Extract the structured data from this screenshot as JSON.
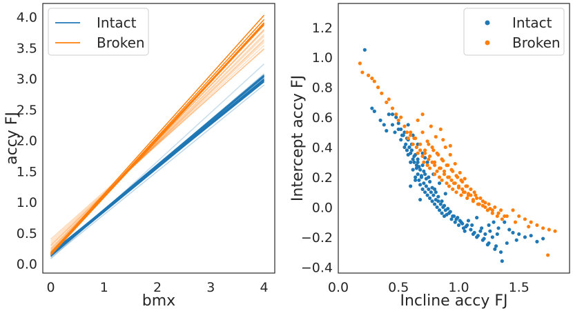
{
  "chart_data": [
    {
      "type": "line",
      "title": "",
      "xlabel": "bmx",
      "ylabel": "accy FJ",
      "xlim": [
        -0.15,
        4.2
      ],
      "ylim": [
        -0.15,
        4.22
      ],
      "xticks": [
        0,
        1,
        2,
        3,
        4
      ],
      "yticks": [
        0.0,
        0.5,
        1.0,
        1.5,
        2.0,
        2.5,
        3.0,
        3.5,
        4.0
      ],
      "xtick_labels": [
        "0",
        "1",
        "2",
        "3",
        "4"
      ],
      "ytick_labels": [
        "0.0",
        "0.5",
        "1.0",
        "1.5",
        "2.0",
        "2.5",
        "3.0",
        "3.5",
        "4.0"
      ],
      "grid": false,
      "legend": {
        "position": "top-left",
        "entries": [
          "Intact",
          "Broken"
        ]
      },
      "series": [
        {
          "name": "Intact",
          "color": "#1f77b4",
          "lines": [
            {
              "intercept": 0.15,
              "slope": 0.705,
              "alpha": 1.0
            },
            {
              "intercept": 0.14,
              "slope": 0.715,
              "alpha": 1.0
            },
            {
              "intercept": 0.16,
              "slope": 0.725,
              "alpha": 1.0
            },
            {
              "intercept": 0.13,
              "slope": 0.71,
              "alpha": 1.0
            },
            {
              "intercept": 0.17,
              "slope": 0.695,
              "alpha": 1.0
            },
            {
              "intercept": 0.15,
              "slope": 0.72,
              "alpha": 1.0
            },
            {
              "intercept": 0.12,
              "slope": 0.73,
              "alpha": 1.0
            },
            {
              "intercept": 0.18,
              "slope": 0.7,
              "alpha": 1.0
            },
            {
              "intercept": 0.16,
              "slope": 0.71,
              "alpha": 1.0
            },
            {
              "intercept": 0.14,
              "slope": 0.725,
              "alpha": 1.0
            },
            {
              "intercept": 0.08,
              "slope": 0.79,
              "alpha": 0.25
            },
            {
              "intercept": 0.1,
              "slope": 0.7,
              "alpha": 0.3
            },
            {
              "intercept": 0.12,
              "slope": 0.74,
              "alpha": 0.35
            }
          ]
        },
        {
          "name": "Broken",
          "color": "#ff7f0e",
          "lines": [
            {
              "intercept": 0.17,
              "slope": 0.965,
              "alpha": 1.0
            },
            {
              "intercept": 0.15,
              "slope": 0.94,
              "alpha": 1.0
            },
            {
              "intercept": 0.18,
              "slope": 0.93,
              "alpha": 1.0
            },
            {
              "intercept": 0.16,
              "slope": 0.95,
              "alpha": 1.0
            },
            {
              "intercept": 0.14,
              "slope": 0.935,
              "alpha": 1.0
            },
            {
              "intercept": 0.19,
              "slope": 0.92,
              "alpha": 0.6
            },
            {
              "intercept": 0.22,
              "slope": 0.89,
              "alpha": 0.35
            },
            {
              "intercept": 0.25,
              "slope": 0.86,
              "alpha": 0.3
            },
            {
              "intercept": 0.28,
              "slope": 0.84,
              "alpha": 0.25
            },
            {
              "intercept": 0.31,
              "slope": 0.82,
              "alpha": 0.25
            },
            {
              "intercept": 0.34,
              "slope": 0.8,
              "alpha": 0.25
            },
            {
              "intercept": 0.37,
              "slope": 0.78,
              "alpha": 0.25
            },
            {
              "intercept": 0.4,
              "slope": 0.77,
              "alpha": 0.3
            },
            {
              "intercept": 0.24,
              "slope": 0.87,
              "alpha": 0.3
            },
            {
              "intercept": 0.2,
              "slope": 0.9,
              "alpha": 0.4
            },
            {
              "intercept": 0.3,
              "slope": 0.83,
              "alpha": 0.3
            }
          ]
        }
      ]
    },
    {
      "type": "scatter",
      "title": "",
      "xlabel": "Incline accy FJ",
      "ylabel": "Intercept accy FJ",
      "xlim": [
        0.0,
        1.92
      ],
      "ylim": [
        -0.44,
        1.36
      ],
      "xticks": [
        0.0,
        0.5,
        1.0,
        1.5
      ],
      "yticks": [
        -0.4,
        -0.2,
        0.0,
        0.2,
        0.4,
        0.6,
        0.8,
        1.0,
        1.2
      ],
      "xtick_labels": [
        "0.0",
        "0.5",
        "1.0",
        "1.5"
      ],
      "ytick_labels": [
        "−0.4",
        "−0.2",
        "0.0",
        "0.2",
        "0.4",
        "0.6",
        "0.8",
        "1.0",
        "1.2"
      ],
      "grid": false,
      "legend": {
        "position": "top-right",
        "entries": [
          "Intact",
          "Broken"
        ]
      },
      "series": [
        {
          "name": "Intact",
          "color": "#1f77b4",
          "x": [
            0.22,
            0.28,
            0.3,
            0.35,
            0.38,
            0.4,
            0.42,
            0.45,
            0.47,
            0.48,
            0.5,
            0.52,
            0.53,
            0.55,
            0.55,
            0.56,
            0.57,
            0.58,
            0.58,
            0.59,
            0.6,
            0.6,
            0.61,
            0.62,
            0.62,
            0.63,
            0.64,
            0.64,
            0.65,
            0.66,
            0.66,
            0.67,
            0.68,
            0.68,
            0.69,
            0.7,
            0.7,
            0.71,
            0.72,
            0.72,
            0.73,
            0.74,
            0.75,
            0.75,
            0.76,
            0.77,
            0.78,
            0.79,
            0.8,
            0.8,
            0.81,
            0.82,
            0.83,
            0.84,
            0.85,
            0.86,
            0.87,
            0.88,
            0.89,
            0.9,
            0.92,
            0.94,
            0.95,
            0.97,
            0.98,
            1.0,
            1.02,
            1.04,
            1.05,
            1.07,
            1.1,
            1.12,
            1.15,
            1.18,
            1.2,
            1.22,
            1.25,
            1.28,
            1.3,
            1.33,
            1.35,
            1.4,
            1.45,
            1.5,
            1.55,
            1.6,
            1.65,
            1.7,
            0.52,
            0.57,
            0.61,
            0.66,
            0.71,
            0.76,
            0.81,
            0.86,
            0.91,
            0.96,
            1.01,
            1.06,
            1.11,
            1.16,
            1.21,
            1.26,
            1.31,
            0.45,
            0.5,
            0.54,
            0.59,
            0.63,
            0.67,
            0.73,
            0.78,
            0.83,
            0.88,
            0.93,
            0.99,
            1.03,
            1.08,
            1.13,
            1.19,
            1.24,
            1.29,
            1.36,
            1.42,
            1.48,
            0.58,
            0.62,
            0.66,
            0.7,
            0.74,
            0.79,
            0.84,
            0.89,
            0.65,
            0.69,
            0.72,
            0.6,
            0.64,
            0.68,
            1.15,
            1.25,
            1.32,
            1.38
          ],
          "y": [
            1.05,
            0.66,
            0.64,
            0.58,
            0.55,
            0.51,
            0.62,
            0.55,
            0.5,
            0.6,
            0.52,
            0.45,
            0.48,
            0.4,
            0.5,
            0.42,
            0.38,
            0.45,
            0.35,
            0.4,
            0.36,
            0.3,
            0.42,
            0.32,
            0.25,
            0.3,
            0.35,
            0.2,
            0.28,
            0.22,
            0.32,
            0.18,
            0.25,
            0.15,
            0.2,
            0.12,
            0.28,
            0.16,
            0.1,
            0.22,
            0.14,
            0.08,
            0.12,
            0.2,
            0.06,
            0.1,
            0.04,
            0.08,
            0.02,
            0.12,
            0.05,
            0.0,
            0.04,
            -0.02,
            0.02,
            -0.04,
            0.0,
            -0.06,
            -0.02,
            -0.05,
            -0.04,
            -0.08,
            -0.06,
            -0.1,
            -0.08,
            -0.12,
            -0.1,
            -0.14,
            -0.16,
            -0.12,
            -0.15,
            -0.18,
            -0.2,
            -0.16,
            -0.22,
            -0.18,
            -0.24,
            -0.2,
            -0.28,
            -0.14,
            -0.3,
            -0.24,
            -0.17,
            -0.18,
            -0.2,
            -0.19,
            -0.23,
            -0.21,
            0.52,
            0.46,
            0.38,
            0.3,
            0.24,
            0.17,
            0.1,
            0.04,
            -0.01,
            -0.06,
            -0.09,
            -0.13,
            -0.12,
            -0.19,
            -0.21,
            -0.16,
            -0.26,
            0.62,
            0.56,
            0.48,
            0.4,
            0.34,
            0.27,
            0.19,
            0.13,
            0.07,
            0.01,
            -0.03,
            -0.07,
            -0.11,
            -0.09,
            -0.17,
            -0.14,
            -0.25,
            -0.1,
            -0.36,
            -0.15,
            -0.22,
            0.55,
            0.48,
            0.42,
            0.36,
            0.3,
            0.22,
            0.16,
            0.09,
            0.26,
            0.21,
            0.33,
            0.14,
            0.18,
            0.05,
            -0.07,
            -0.12,
            -0.18,
            -0.1
          ]
        },
        {
          "name": "Broken",
          "color": "#ff7f0e",
          "x": [
            0.18,
            0.2,
            0.25,
            0.28,
            0.3,
            0.33,
            0.36,
            0.4,
            0.42,
            0.45,
            0.48,
            0.5,
            0.52,
            0.55,
            0.57,
            0.58,
            0.6,
            0.62,
            0.63,
            0.65,
            0.66,
            0.68,
            0.7,
            0.71,
            0.72,
            0.74,
            0.75,
            0.76,
            0.78,
            0.8,
            0.8,
            0.82,
            0.84,
            0.85,
            0.86,
            0.88,
            0.9,
            0.91,
            0.92,
            0.94,
            0.95,
            0.97,
            0.98,
            1.0,
            1.02,
            1.03,
            1.05,
            1.07,
            1.08,
            1.1,
            1.12,
            1.15,
            1.17,
            1.2,
            1.22,
            1.25,
            1.28,
            1.3,
            1.33,
            1.35,
            1.4,
            1.45,
            1.5,
            1.55,
            1.6,
            1.65,
            1.7,
            1.75,
            1.8,
            0.6,
            0.64,
            0.68,
            0.72,
            0.76,
            0.8,
            0.84,
            0.88,
            0.92,
            0.96,
            1.0,
            1.04,
            1.08,
            1.12,
            1.16,
            1.2,
            1.24,
            1.28,
            1.32,
            1.36,
            0.66,
            0.7,
            0.74,
            0.78,
            0.82,
            0.86,
            0.9,
            0.94,
            0.98,
            1.02,
            1.06,
            1.1,
            1.14,
            1.18,
            1.22,
            0.75,
            0.79,
            0.83,
            0.87,
            0.91,
            0.95,
            0.99,
            1.03,
            1.07,
            0.85,
            0.89,
            0.93,
            0.97,
            1.01,
            1.05,
            0.7,
            0.77,
            0.81,
            0.87,
            0.93,
            1.13,
            1.26,
            1.38,
            1.47,
            1.58,
            1.74
          ],
          "y": [
            0.96,
            0.9,
            0.88,
            0.86,
            0.84,
            0.8,
            0.76,
            0.7,
            0.72,
            0.66,
            0.62,
            0.58,
            0.6,
            0.54,
            0.5,
            0.46,
            0.48,
            0.42,
            0.46,
            0.4,
            0.36,
            0.38,
            0.34,
            0.3,
            0.36,
            0.28,
            0.32,
            0.26,
            0.3,
            0.22,
            0.28,
            0.24,
            0.2,
            0.26,
            0.18,
            0.22,
            0.16,
            0.2,
            0.14,
            0.18,
            0.12,
            0.16,
            0.1,
            0.14,
            0.08,
            0.12,
            0.1,
            0.06,
            0.09,
            0.08,
            0.04,
            0.06,
            0.02,
            0.04,
            0.0,
            0.02,
            -0.02,
            0.0,
            -0.04,
            -0.02,
            -0.06,
            -0.02,
            -0.06,
            -0.08,
            -0.1,
            -0.12,
            -0.14,
            -0.15,
            -0.16,
            0.5,
            0.46,
            0.42,
            0.38,
            0.34,
            0.3,
            0.26,
            0.24,
            0.2,
            0.16,
            0.13,
            0.1,
            0.08,
            0.05,
            0.02,
            0.01,
            -0.02,
            -0.04,
            -0.06,
            -0.08,
            0.58,
            0.5,
            0.44,
            0.4,
            0.36,
            0.32,
            0.28,
            0.25,
            0.21,
            0.18,
            0.14,
            0.12,
            0.08,
            0.06,
            0.03,
            0.42,
            0.38,
            0.35,
            0.31,
            0.28,
            0.24,
            0.2,
            0.17,
            0.14,
            0.52,
            0.4,
            0.35,
            0.29,
            0.23,
            0.19,
            0.62,
            0.54,
            0.47,
            0.45,
            0.41,
            0.1,
            -0.01,
            -0.06,
            -0.1,
            -0.13,
            -0.32
          ]
        }
      ]
    }
  ]
}
